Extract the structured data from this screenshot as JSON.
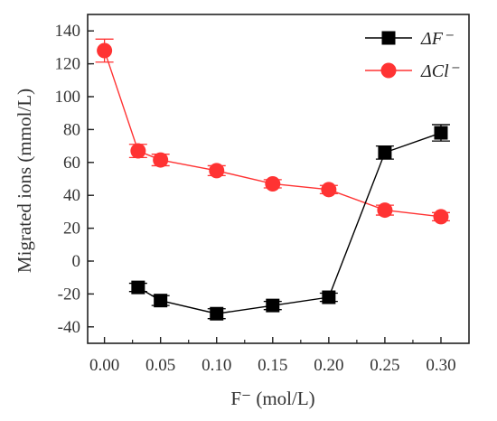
{
  "chart_data": {
    "type": "line",
    "xlabel": "F⁻ (mol/L)",
    "ylabel": "Migrated ions (mmol/L)",
    "xlim": [
      -0.015,
      0.325
    ],
    "ylim": [
      -50,
      150
    ],
    "x_ticks": [
      "0.00",
      "0.05",
      "0.10",
      "0.15",
      "0.20",
      "0.25",
      "0.30"
    ],
    "x_tick_values": [
      0,
      0.05,
      0.1,
      0.15,
      0.2,
      0.25,
      0.3
    ],
    "y_ticks": [
      "-40",
      "-20",
      "0",
      "20",
      "40",
      "60",
      "80",
      "100",
      "120",
      "140"
    ],
    "y_tick_values": [
      -40,
      -20,
      0,
      20,
      40,
      60,
      80,
      100,
      120,
      140
    ],
    "grid": false,
    "legend_position": "top-right",
    "series": [
      {
        "name": "ΔF⁻",
        "marker": "square",
        "color": "#000000",
        "x": [
          0.03,
          0.05,
          0.1,
          0.15,
          0.2,
          0.25,
          0.3
        ],
        "y": [
          -16,
          -24,
          -32,
          -27,
          -22,
          66,
          78
        ],
        "err": [
          2.5,
          3,
          3,
          2.5,
          2.5,
          4,
          5
        ]
      },
      {
        "name": "ΔCl⁻",
        "marker": "circle",
        "color": "#ff3333",
        "x": [
          0,
          0.03,
          0.05,
          0.1,
          0.15,
          0.2,
          0.25,
          0.3
        ],
        "y": [
          128,
          67,
          61.5,
          55,
          47,
          43.5,
          31,
          27
        ],
        "err": [
          7,
          4,
          3.5,
          3,
          2.5,
          2.5,
          3,
          2.5
        ]
      }
    ]
  }
}
